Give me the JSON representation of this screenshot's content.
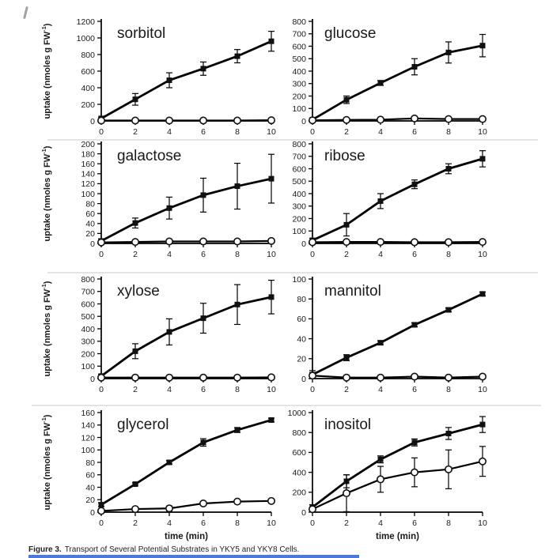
{
  "caption": {
    "label": "Figure 3.",
    "text": "Transport of Several Potential Substrates in YKY5 and YKY8 Cells."
  },
  "colors": {
    "line": "#000000",
    "marker_fill": "#111111",
    "background": "#ffffff",
    "bottom_bar": "#4b79da"
  },
  "chart_data": [
    {
      "type": "line",
      "title": "sorbitol",
      "ylabel": "uptake (nmoles g FW-1)",
      "xlabel": "",
      "x": [
        0,
        2,
        4,
        6,
        8,
        10
      ],
      "xlim": [
        0,
        10
      ],
      "ylim": [
        0,
        1200
      ],
      "ytick_step": 200,
      "grid": false,
      "legend": "none",
      "series": [
        {
          "name": "filled square",
          "marker": "square",
          "values": [
            30,
            260,
            490,
            630,
            780,
            960
          ],
          "errors": [
            15,
            70,
            90,
            80,
            80,
            120
          ]
        },
        {
          "name": "open circle",
          "marker": "circle",
          "values": [
            5,
            5,
            5,
            5,
            5,
            8
          ],
          "errors": [
            0,
            0,
            0,
            0,
            0,
            0
          ]
        }
      ]
    },
    {
      "type": "line",
      "title": "glucose",
      "ylabel": "",
      "xlabel": "",
      "x": [
        0,
        2,
        4,
        6,
        8,
        10
      ],
      "xlim": [
        0,
        10
      ],
      "ylim": [
        0,
        800
      ],
      "ytick_step": 100,
      "grid": false,
      "legend": "none",
      "series": [
        {
          "name": "filled square",
          "marker": "square",
          "values": [
            10,
            170,
            305,
            435,
            550,
            605
          ],
          "errors": [
            10,
            30,
            20,
            65,
            85,
            90
          ]
        },
        {
          "name": "open circle",
          "marker": "circle",
          "values": [
            5,
            8,
            10,
            20,
            15,
            15
          ],
          "errors": [
            0,
            0,
            0,
            6,
            5,
            5
          ]
        }
      ]
    },
    {
      "type": "line",
      "title": "galactose",
      "ylabel": "uptake (nmoles g FW-1)",
      "xlabel": "",
      "x": [
        0,
        2,
        4,
        6,
        8,
        10
      ],
      "xlim": [
        0,
        10
      ],
      "ylim": [
        0,
        200
      ],
      "ytick_step": 20,
      "grid": false,
      "legend": "none",
      "series": [
        {
          "name": "filled square",
          "marker": "square",
          "values": [
            5,
            41,
            71,
            97,
            115,
            130
          ],
          "errors": [
            4,
            10,
            22,
            34,
            46,
            49
          ]
        },
        {
          "name": "open circle",
          "marker": "circle",
          "values": [
            2,
            3,
            4,
            4,
            4,
            5
          ],
          "errors": [
            4,
            0,
            0,
            0,
            0,
            0
          ]
        }
      ]
    },
    {
      "type": "line",
      "title": "ribose",
      "ylabel": "",
      "xlabel": "",
      "x": [
        0,
        2,
        4,
        6,
        8,
        10
      ],
      "xlim": [
        0,
        10
      ],
      "ylim": [
        0,
        800
      ],
      "ytick_step": 100,
      "grid": false,
      "legend": "none",
      "series": [
        {
          "name": "filled square",
          "marker": "square",
          "values": [
            25,
            150,
            340,
            475,
            600,
            680
          ],
          "errors": [
            15,
            90,
            60,
            35,
            40,
            65
          ]
        },
        {
          "name": "open circle",
          "marker": "circle",
          "values": [
            10,
            12,
            12,
            10,
            10,
            12
          ],
          "errors": [
            0,
            0,
            0,
            0,
            0,
            0
          ]
        }
      ]
    },
    {
      "type": "line",
      "title": "xylose",
      "ylabel": "uptake (nmoles g FW-1)",
      "xlabel": "",
      "x": [
        0,
        2,
        4,
        6,
        8,
        10
      ],
      "xlim": [
        0,
        10
      ],
      "ylim": [
        0,
        800
      ],
      "ytick_step": 100,
      "grid": false,
      "legend": "none",
      "series": [
        {
          "name": "filled square",
          "marker": "square",
          "values": [
            20,
            220,
            375,
            485,
            595,
            655
          ],
          "errors": [
            15,
            60,
            105,
            120,
            160,
            135
          ]
        },
        {
          "name": "open circle",
          "marker": "circle",
          "values": [
            8,
            8,
            8,
            8,
            8,
            10
          ],
          "errors": [
            0,
            0,
            0,
            0,
            0,
            0
          ]
        }
      ]
    },
    {
      "type": "line",
      "title": "mannitol",
      "ylabel": "",
      "xlabel": "",
      "x": [
        0,
        2,
        4,
        6,
        8,
        10
      ],
      "xlim": [
        0,
        10
      ],
      "ylim": [
        0,
        100
      ],
      "ytick_step": 20,
      "grid": false,
      "legend": "none",
      "series": [
        {
          "name": "filled square",
          "marker": "square",
          "values": [
            4,
            21,
            36,
            54,
            69,
            85
          ],
          "errors": [
            4,
            3,
            2,
            2,
            2,
            2
          ]
        },
        {
          "name": "open circle",
          "marker": "circle",
          "values": [
            3,
            1,
            1,
            2,
            1,
            2
          ],
          "errors": [
            3,
            0,
            0,
            0,
            0,
            0
          ]
        }
      ]
    },
    {
      "type": "line",
      "title": "glycerol",
      "ylabel": "uptake (nmoles g FW-1)",
      "xlabel": "time (min)",
      "x": [
        0,
        2,
        4,
        6,
        8,
        10
      ],
      "xlim": [
        0,
        10
      ],
      "ylim": [
        0,
        160
      ],
      "ytick_step": 20,
      "grid": false,
      "legend": "none",
      "series": [
        {
          "name": "filled square",
          "marker": "square",
          "values": [
            12,
            45,
            80,
            112,
            132,
            148
          ],
          "errors": [
            3,
            2,
            3,
            6,
            4,
            3
          ]
        },
        {
          "name": "open circle",
          "marker": "circle",
          "values": [
            2,
            5,
            6,
            14,
            17,
            18
          ],
          "errors": [
            0,
            0,
            4,
            0,
            0,
            3
          ]
        }
      ]
    },
    {
      "type": "line",
      "title": "inositol",
      "ylabel": "",
      "xlabel": "time (min)",
      "x": [
        0,
        2,
        4,
        6,
        8,
        10
      ],
      "xlim": [
        0,
        10
      ],
      "ylim": [
        0,
        1000
      ],
      "ytick_step": 200,
      "grid": false,
      "legend": "none",
      "series": [
        {
          "name": "filled square",
          "marker": "square",
          "values": [
            50,
            310,
            530,
            700,
            790,
            880
          ],
          "errors": [
            25,
            65,
            35,
            35,
            60,
            80
          ]
        },
        {
          "name": "open circle",
          "marker": "circle",
          "values": [
            30,
            190,
            330,
            400,
            430,
            510
          ],
          "errors": [
            20,
            185,
            130,
            145,
            195,
            150
          ]
        }
      ]
    }
  ]
}
